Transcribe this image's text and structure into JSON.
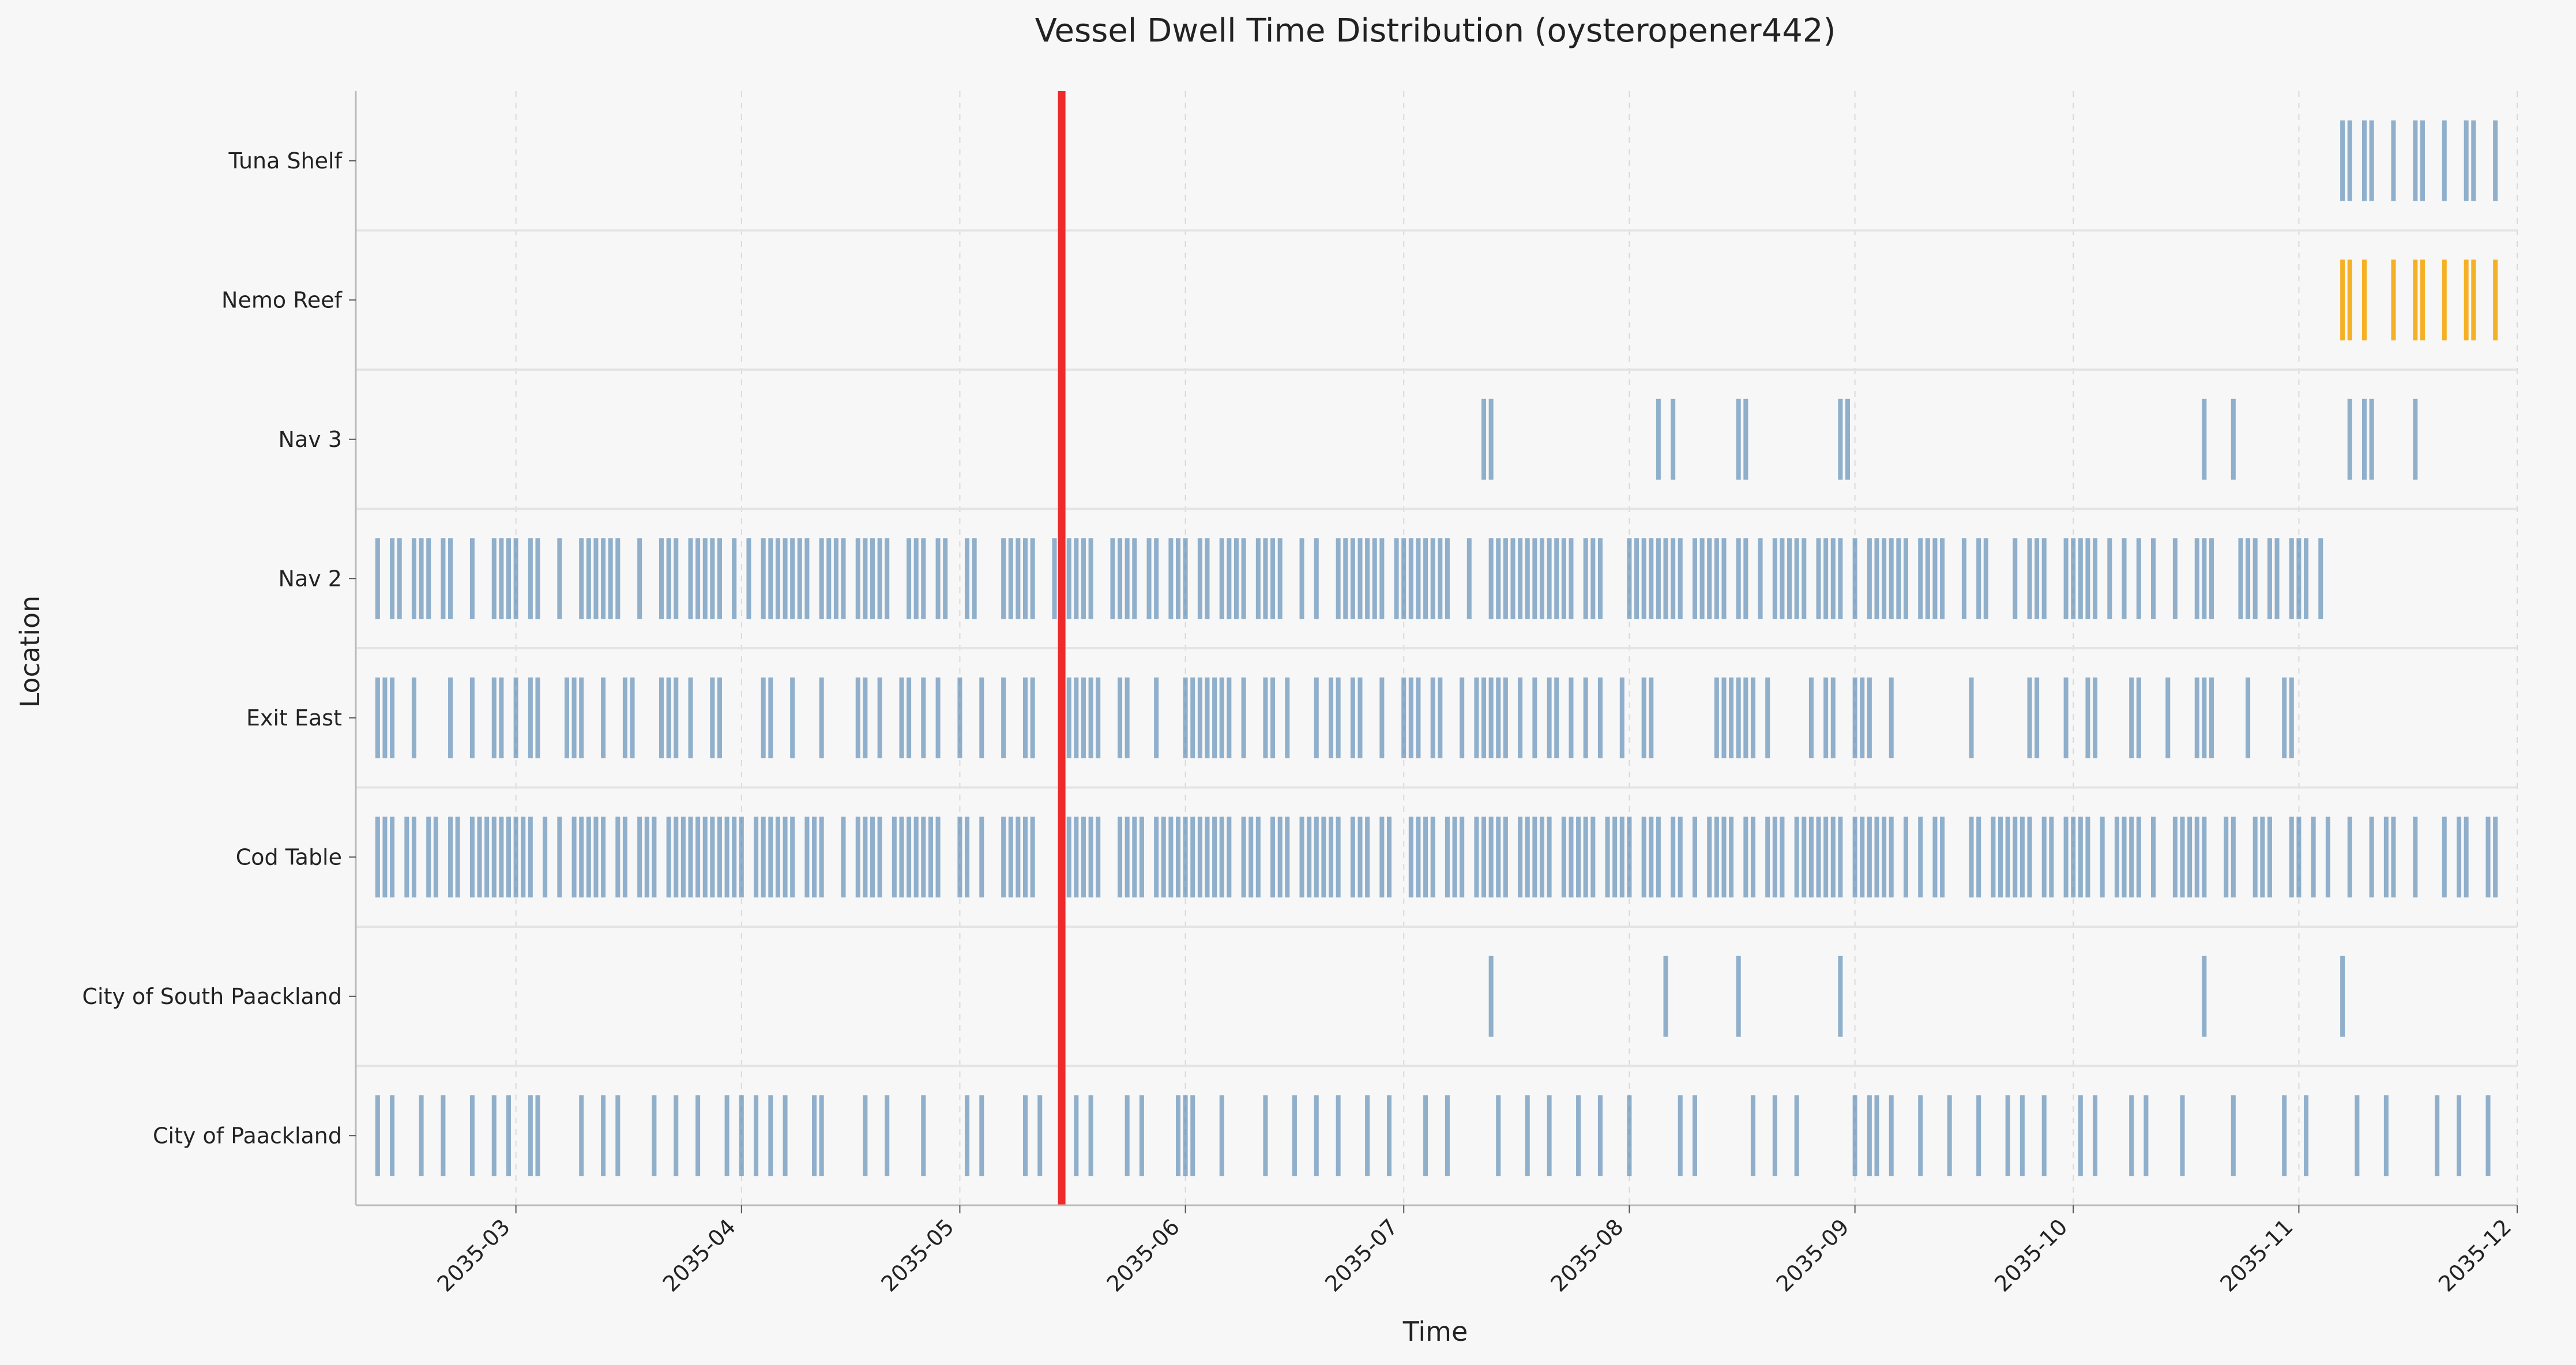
{
  "chart_data": {
    "type": "event-strip",
    "title": "Vessel Dwell Time Distribution (oysteropener442)",
    "xlabel": "Time",
    "ylabel": "Location",
    "xlim": [
      "2035-02-07",
      "2035-12-01"
    ],
    "x_ticks": [
      "2035-03",
      "2035-04",
      "2035-05",
      "2035-06",
      "2035-07",
      "2035-08",
      "2035-09",
      "2035-10",
      "2035-11",
      "2035-12"
    ],
    "categories": [
      "Tuna Shelf",
      "Nemo Reef",
      "Nav 3",
      "Nav 2",
      "Exit East",
      "Cod Table",
      "City of South Paackland",
      "City of Paackland"
    ],
    "grid": "x-dashed",
    "marker": {
      "date": "2035-05-15",
      "color": "#ee2a2a"
    },
    "colors": {
      "default": "#4a7fad",
      "highlight": "#f5a500"
    },
    "series": [
      {
        "location": "Tuna Shelf",
        "color": "#4a7fad",
        "events": [
          "2035-11-07",
          "2035-11-08",
          "2035-11-10",
          "2035-11-11",
          "2035-11-14",
          "2035-11-17",
          "2035-11-18",
          "2035-11-21",
          "2035-11-24",
          "2035-11-25",
          "2035-11-28"
        ]
      },
      {
        "location": "Nemo Reef",
        "color": "#f5a500",
        "events": [
          "2035-11-07",
          "2035-11-08",
          "2035-11-10",
          "2035-11-14",
          "2035-11-17",
          "2035-11-18",
          "2035-11-21",
          "2035-11-24",
          "2035-11-25",
          "2035-11-28"
        ]
      },
      {
        "location": "Nav 3",
        "color": "#4a7fad",
        "events": [
          "2035-07-12",
          "2035-07-13",
          "2035-08-05",
          "2035-08-07",
          "2035-08-16",
          "2035-08-17",
          "2035-08-30",
          "2035-08-31",
          "2035-10-19",
          "2035-10-23",
          "2035-11-08",
          "2035-11-10",
          "2035-11-11",
          "2035-11-17"
        ]
      },
      {
        "location": "Nav 2",
        "color": "#4a7fad",
        "events": [
          "2035-02-10",
          "2035-02-12",
          "2035-02-13",
          "2035-02-15",
          "2035-02-16",
          "2035-02-17",
          "2035-02-19",
          "2035-02-20",
          "2035-02-23",
          "2035-02-26",
          "2035-02-27",
          "2035-02-28",
          "2035-03-01",
          "2035-03-03",
          "2035-03-04",
          "2035-03-07",
          "2035-03-10",
          "2035-03-11",
          "2035-03-12",
          "2035-03-13",
          "2035-03-14",
          "2035-03-15",
          "2035-03-18",
          "2035-03-21",
          "2035-03-22",
          "2035-03-23",
          "2035-03-25",
          "2035-03-26",
          "2035-03-27",
          "2035-03-28",
          "2035-03-29",
          "2035-03-31",
          "2035-04-02",
          "2035-04-04",
          "2035-04-05",
          "2035-04-06",
          "2035-04-07",
          "2035-04-08",
          "2035-04-09",
          "2035-04-10",
          "2035-04-12",
          "2035-04-13",
          "2035-04-14",
          "2035-04-15",
          "2035-04-17",
          "2035-04-18",
          "2035-04-19",
          "2035-04-20",
          "2035-04-21",
          "2035-04-24",
          "2035-04-25",
          "2035-04-26",
          "2035-04-28",
          "2035-04-29",
          "2035-05-02",
          "2035-05-03",
          "2035-05-07",
          "2035-05-08",
          "2035-05-09",
          "2035-05-10",
          "2035-05-11",
          "2035-05-14",
          "2035-05-16",
          "2035-05-17",
          "2035-05-18",
          "2035-05-19",
          "2035-05-22",
          "2035-05-23",
          "2035-05-24",
          "2035-05-25",
          "2035-05-27",
          "2035-05-28",
          "2035-05-30",
          "2035-05-31",
          "2035-06-01",
          "2035-06-03",
          "2035-06-04",
          "2035-06-06",
          "2035-06-07",
          "2035-06-08",
          "2035-06-09",
          "2035-06-11",
          "2035-06-12",
          "2035-06-13",
          "2035-06-14",
          "2035-06-17",
          "2035-06-19",
          "2035-06-22",
          "2035-06-23",
          "2035-06-24",
          "2035-06-25",
          "2035-06-26",
          "2035-06-27",
          "2035-06-28",
          "2035-06-30",
          "2035-07-01",
          "2035-07-02",
          "2035-07-03",
          "2035-07-04",
          "2035-07-05",
          "2035-07-06",
          "2035-07-07",
          "2035-07-10",
          "2035-07-13",
          "2035-07-14",
          "2035-07-15",
          "2035-07-16",
          "2035-07-17",
          "2035-07-18",
          "2035-07-19",
          "2035-07-20",
          "2035-07-21",
          "2035-07-22",
          "2035-07-23",
          "2035-07-24",
          "2035-07-26",
          "2035-07-27",
          "2035-07-28",
          "2035-08-01",
          "2035-08-02",
          "2035-08-03",
          "2035-08-04",
          "2035-08-05",
          "2035-08-06",
          "2035-08-07",
          "2035-08-08",
          "2035-08-10",
          "2035-08-11",
          "2035-08-12",
          "2035-08-13",
          "2035-08-14",
          "2035-08-16",
          "2035-08-17",
          "2035-08-19",
          "2035-08-21",
          "2035-08-22",
          "2035-08-23",
          "2035-08-24",
          "2035-08-25",
          "2035-08-27",
          "2035-08-28",
          "2035-08-29",
          "2035-08-30",
          "2035-09-01",
          "2035-09-03",
          "2035-09-04",
          "2035-09-05",
          "2035-09-06",
          "2035-09-07",
          "2035-09-08",
          "2035-09-10",
          "2035-09-11",
          "2035-09-12",
          "2035-09-13",
          "2035-09-16",
          "2035-09-18",
          "2035-09-19",
          "2035-09-23",
          "2035-09-25",
          "2035-09-26",
          "2035-09-27",
          "2035-09-30",
          "2035-10-01",
          "2035-10-02",
          "2035-10-03",
          "2035-10-04",
          "2035-10-06",
          "2035-10-08",
          "2035-10-10",
          "2035-10-12",
          "2035-10-15",
          "2035-10-18",
          "2035-10-19",
          "2035-10-20",
          "2035-10-24",
          "2035-10-25",
          "2035-10-26",
          "2035-10-28",
          "2035-10-29",
          "2035-10-31",
          "2035-11-01",
          "2035-11-02",
          "2035-11-04"
        ]
      },
      {
        "location": "Exit East",
        "color": "#4a7fad",
        "events": [
          "2035-02-10",
          "2035-02-11",
          "2035-02-12",
          "2035-02-15",
          "2035-02-20",
          "2035-02-23",
          "2035-02-26",
          "2035-02-27",
          "2035-03-01",
          "2035-03-03",
          "2035-03-04",
          "2035-03-08",
          "2035-03-09",
          "2035-03-10",
          "2035-03-13",
          "2035-03-16",
          "2035-03-17",
          "2035-03-21",
          "2035-03-22",
          "2035-03-23",
          "2035-03-25",
          "2035-03-28",
          "2035-03-29",
          "2035-04-04",
          "2035-04-05",
          "2035-04-08",
          "2035-04-12",
          "2035-04-17",
          "2035-04-18",
          "2035-04-20",
          "2035-04-23",
          "2035-04-24",
          "2035-04-26",
          "2035-04-28",
          "2035-05-01",
          "2035-05-04",
          "2035-05-07",
          "2035-05-10",
          "2035-05-11",
          "2035-05-16",
          "2035-05-17",
          "2035-05-18",
          "2035-05-19",
          "2035-05-20",
          "2035-05-23",
          "2035-05-24",
          "2035-05-28",
          "2035-06-01",
          "2035-06-02",
          "2035-06-03",
          "2035-06-04",
          "2035-06-05",
          "2035-06-06",
          "2035-06-07",
          "2035-06-09",
          "2035-06-12",
          "2035-06-13",
          "2035-06-15",
          "2035-06-19",
          "2035-06-21",
          "2035-06-22",
          "2035-06-24",
          "2035-06-25",
          "2035-06-28",
          "2035-07-01",
          "2035-07-02",
          "2035-07-03",
          "2035-07-05",
          "2035-07-06",
          "2035-07-09",
          "2035-07-11",
          "2035-07-12",
          "2035-07-13",
          "2035-07-14",
          "2035-07-15",
          "2035-07-17",
          "2035-07-19",
          "2035-07-21",
          "2035-07-22",
          "2035-07-24",
          "2035-07-26",
          "2035-07-28",
          "2035-07-31",
          "2035-08-03",
          "2035-08-04",
          "2035-08-13",
          "2035-08-14",
          "2035-08-15",
          "2035-08-16",
          "2035-08-17",
          "2035-08-18",
          "2035-08-20",
          "2035-08-26",
          "2035-08-28",
          "2035-08-29",
          "2035-09-01",
          "2035-09-02",
          "2035-09-03",
          "2035-09-06",
          "2035-09-17",
          "2035-09-25",
          "2035-09-26",
          "2035-09-30",
          "2035-10-03",
          "2035-10-04",
          "2035-10-09",
          "2035-10-10",
          "2035-10-14",
          "2035-10-18",
          "2035-10-19",
          "2035-10-20",
          "2035-10-25",
          "2035-10-30",
          "2035-10-31"
        ]
      },
      {
        "location": "Cod Table",
        "color": "#4a7fad",
        "events": [
          "2035-02-10",
          "2035-02-11",
          "2035-02-12",
          "2035-02-14",
          "2035-02-15",
          "2035-02-17",
          "2035-02-18",
          "2035-02-20",
          "2035-02-21",
          "2035-02-23",
          "2035-02-24",
          "2035-02-25",
          "2035-02-26",
          "2035-02-27",
          "2035-02-28",
          "2035-03-01",
          "2035-03-02",
          "2035-03-03",
          "2035-03-05",
          "2035-03-07",
          "2035-03-09",
          "2035-03-10",
          "2035-03-11",
          "2035-03-12",
          "2035-03-13",
          "2035-03-15",
          "2035-03-16",
          "2035-03-18",
          "2035-03-19",
          "2035-03-20",
          "2035-03-22",
          "2035-03-23",
          "2035-03-24",
          "2035-03-25",
          "2035-03-26",
          "2035-03-27",
          "2035-03-28",
          "2035-03-29",
          "2035-03-30",
          "2035-03-31",
          "2035-04-01",
          "2035-04-03",
          "2035-04-04",
          "2035-04-05",
          "2035-04-06",
          "2035-04-07",
          "2035-04-08",
          "2035-04-10",
          "2035-04-11",
          "2035-04-12",
          "2035-04-15",
          "2035-04-17",
          "2035-04-18",
          "2035-04-19",
          "2035-04-20",
          "2035-04-22",
          "2035-04-23",
          "2035-04-24",
          "2035-04-25",
          "2035-04-26",
          "2035-04-27",
          "2035-04-28",
          "2035-05-01",
          "2035-05-02",
          "2035-05-04",
          "2035-05-07",
          "2035-05-08",
          "2035-05-09",
          "2035-05-10",
          "2035-05-11",
          "2035-05-16",
          "2035-05-17",
          "2035-05-18",
          "2035-05-19",
          "2035-05-20",
          "2035-05-23",
          "2035-05-24",
          "2035-05-25",
          "2035-05-26",
          "2035-05-28",
          "2035-05-29",
          "2035-05-30",
          "2035-05-31",
          "2035-06-01",
          "2035-06-02",
          "2035-06-03",
          "2035-06-04",
          "2035-06-05",
          "2035-06-06",
          "2035-06-07",
          "2035-06-09",
          "2035-06-10",
          "2035-06-11",
          "2035-06-13",
          "2035-06-14",
          "2035-06-15",
          "2035-06-17",
          "2035-06-18",
          "2035-06-19",
          "2035-06-20",
          "2035-06-21",
          "2035-06-22",
          "2035-06-24",
          "2035-06-25",
          "2035-06-26",
          "2035-06-28",
          "2035-06-29",
          "2035-07-02",
          "2035-07-03",
          "2035-07-04",
          "2035-07-05",
          "2035-07-07",
          "2035-07-08",
          "2035-07-09",
          "2035-07-11",
          "2035-07-12",
          "2035-07-13",
          "2035-07-14",
          "2035-07-15",
          "2035-07-17",
          "2035-07-18",
          "2035-07-19",
          "2035-07-20",
          "2035-07-21",
          "2035-07-23",
          "2035-07-24",
          "2035-07-25",
          "2035-07-26",
          "2035-07-27",
          "2035-07-29",
          "2035-07-30",
          "2035-07-31",
          "2035-08-01",
          "2035-08-03",
          "2035-08-04",
          "2035-08-05",
          "2035-08-07",
          "2035-08-08",
          "2035-08-10",
          "2035-08-12",
          "2035-08-13",
          "2035-08-14",
          "2035-08-15",
          "2035-08-17",
          "2035-08-18",
          "2035-08-20",
          "2035-08-21",
          "2035-08-22",
          "2035-08-24",
          "2035-08-25",
          "2035-08-26",
          "2035-08-27",
          "2035-08-28",
          "2035-08-29",
          "2035-08-30",
          "2035-09-01",
          "2035-09-02",
          "2035-09-03",
          "2035-09-04",
          "2035-09-05",
          "2035-09-06",
          "2035-09-08",
          "2035-09-10",
          "2035-09-12",
          "2035-09-13",
          "2035-09-17",
          "2035-09-18",
          "2035-09-20",
          "2035-09-21",
          "2035-09-22",
          "2035-09-23",
          "2035-09-24",
          "2035-09-25",
          "2035-09-27",
          "2035-09-28",
          "2035-09-30",
          "2035-10-01",
          "2035-10-02",
          "2035-10-03",
          "2035-10-05",
          "2035-10-07",
          "2035-10-08",
          "2035-10-09",
          "2035-10-10",
          "2035-10-12",
          "2035-10-15",
          "2035-10-16",
          "2035-10-17",
          "2035-10-18",
          "2035-10-19",
          "2035-10-22",
          "2035-10-23",
          "2035-10-26",
          "2035-10-27",
          "2035-10-28",
          "2035-10-31",
          "2035-11-01",
          "2035-11-03",
          "2035-11-05",
          "2035-11-08",
          "2035-11-11",
          "2035-11-13",
          "2035-11-14",
          "2035-11-17",
          "2035-11-21",
          "2035-11-23",
          "2035-11-24",
          "2035-11-27",
          "2035-11-28"
        ]
      },
      {
        "location": "City of South Paackland",
        "color": "#4a7fad",
        "events": [
          "2035-07-13",
          "2035-08-06",
          "2035-08-16",
          "2035-08-30",
          "2035-10-19",
          "2035-11-07"
        ]
      },
      {
        "location": "City of Paackland",
        "color": "#4a7fad",
        "events": [
          "2035-02-10",
          "2035-02-12",
          "2035-02-16",
          "2035-02-19",
          "2035-02-23",
          "2035-02-26",
          "2035-02-28",
          "2035-03-03",
          "2035-03-04",
          "2035-03-10",
          "2035-03-13",
          "2035-03-15",
          "2035-03-20",
          "2035-03-23",
          "2035-03-26",
          "2035-03-30",
          "2035-04-01",
          "2035-04-03",
          "2035-04-05",
          "2035-04-07",
          "2035-04-11",
          "2035-04-12",
          "2035-04-18",
          "2035-04-21",
          "2035-04-26",
          "2035-05-02",
          "2035-05-04",
          "2035-05-10",
          "2035-05-12",
          "2035-05-17",
          "2035-05-19",
          "2035-05-24",
          "2035-05-26",
          "2035-05-31",
          "2035-06-01",
          "2035-06-02",
          "2035-06-06",
          "2035-06-12",
          "2035-06-16",
          "2035-06-19",
          "2035-06-22",
          "2035-06-26",
          "2035-06-29",
          "2035-07-04",
          "2035-07-07",
          "2035-07-14",
          "2035-07-18",
          "2035-07-21",
          "2035-07-25",
          "2035-07-28",
          "2035-08-01",
          "2035-08-08",
          "2035-08-10",
          "2035-08-18",
          "2035-08-21",
          "2035-08-24",
          "2035-09-01",
          "2035-09-03",
          "2035-09-04",
          "2035-09-06",
          "2035-09-10",
          "2035-09-14",
          "2035-09-18",
          "2035-09-22",
          "2035-09-24",
          "2035-09-27",
          "2035-10-02",
          "2035-10-04",
          "2035-10-09",
          "2035-10-11",
          "2035-10-16",
          "2035-10-23",
          "2035-10-30",
          "2035-11-02",
          "2035-11-09",
          "2035-11-13",
          "2035-11-20",
          "2035-11-23",
          "2035-11-27"
        ]
      }
    ]
  }
}
